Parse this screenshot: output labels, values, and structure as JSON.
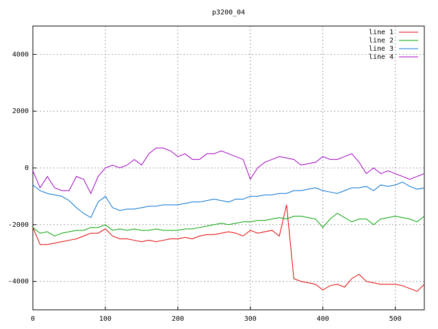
{
  "chart_data": {
    "type": "line",
    "title": "p3200_04",
    "x": [
      0,
      10,
      20,
      30,
      40,
      50,
      60,
      70,
      80,
      90,
      100,
      110,
      120,
      130,
      140,
      150,
      160,
      170,
      180,
      190,
      200,
      210,
      220,
      230,
      240,
      250,
      260,
      270,
      280,
      290,
      300,
      310,
      320,
      330,
      340,
      350,
      360,
      370,
      380,
      390,
      400,
      410,
      420,
      430,
      440,
      450,
      460,
      470,
      480,
      490,
      500,
      510,
      520,
      530,
      540
    ],
    "series": [
      {
        "name": "line 1",
        "color": "#e00000",
        "values": [
          -2100,
          -2700,
          -2700,
          -2650,
          -2600,
          -2550,
          -2500,
          -2400,
          -2300,
          -2300,
          -2150,
          -2400,
          -2500,
          -2500,
          -2550,
          -2600,
          -2550,
          -2600,
          -2550,
          -2500,
          -2500,
          -2450,
          -2500,
          -2400,
          -2350,
          -2350,
          -2300,
          -2250,
          -2300,
          -2400,
          -2200,
          -2300,
          -2250,
          -2200,
          -2400,
          -1300,
          -3900,
          -4000,
          -4050,
          -4100,
          -4300,
          -4150,
          -4100,
          -4200,
          -3900,
          -3750,
          -4000,
          -4050,
          -4100,
          -4100,
          -4100,
          -4150,
          -4250,
          -4350,
          -4100
        ]
      },
      {
        "name": "line 2",
        "color": "#00a000",
        "values": [
          -2100,
          -2300,
          -2250,
          -2400,
          -2300,
          -2250,
          -2200,
          -2200,
          -2100,
          -2100,
          -2000,
          -2200,
          -2150,
          -2200,
          -2150,
          -2200,
          -2200,
          -2150,
          -2200,
          -2200,
          -2200,
          -2150,
          -2150,
          -2100,
          -2050,
          -2000,
          -1950,
          -2000,
          -1950,
          -1900,
          -1900,
          -1850,
          -1850,
          -1800,
          -1750,
          -1800,
          -1700,
          -1700,
          -1750,
          -1800,
          -2100,
          -1800,
          -1600,
          -1750,
          -1900,
          -1800,
          -1800,
          -2000,
          -1800,
          -1750,
          -1700,
          -1750,
          -1800,
          -1900,
          -1700
        ]
      },
      {
        "name": "line 3",
        "color": "#0070d0",
        "values": [
          -600,
          -800,
          -900,
          -950,
          -1000,
          -1150,
          -1400,
          -1600,
          -1750,
          -1200,
          -1000,
          -1400,
          -1500,
          -1450,
          -1450,
          -1400,
          -1350,
          -1350,
          -1300,
          -1300,
          -1300,
          -1250,
          -1200,
          -1200,
          -1150,
          -1100,
          -1150,
          -1200,
          -1100,
          -1100,
          -1000,
          -1000,
          -950,
          -950,
          -900,
          -900,
          -800,
          -800,
          -750,
          -700,
          -800,
          -850,
          -900,
          -800,
          -700,
          -700,
          -650,
          -800,
          -600,
          -650,
          -600,
          -500,
          -650,
          -750,
          -700
        ]
      },
      {
        "name": "line 4",
        "color": "#a000c0",
        "values": [
          -100,
          -700,
          -300,
          -700,
          -800,
          -800,
          -300,
          -400,
          -900,
          -300,
          0,
          100,
          0,
          100,
          300,
          100,
          500,
          700,
          700,
          600,
          400,
          500,
          300,
          300,
          500,
          500,
          600,
          500,
          400,
          300,
          -400,
          0,
          200,
          300,
          400,
          350,
          300,
          100,
          150,
          200,
          400,
          300,
          300,
          400,
          500,
          200,
          -200,
          0,
          -200,
          -100,
          -200,
          -300,
          -400,
          -300,
          -200
        ]
      }
    ],
    "xlim": [
      0,
      540
    ],
    "xticks": [
      0,
      100,
      200,
      300,
      400,
      500
    ],
    "ylim": [
      -5000,
      5000
    ],
    "yticks": [
      -4000,
      -2000,
      0,
      2000,
      4000
    ],
    "grid": true,
    "legend": "top-right"
  }
}
